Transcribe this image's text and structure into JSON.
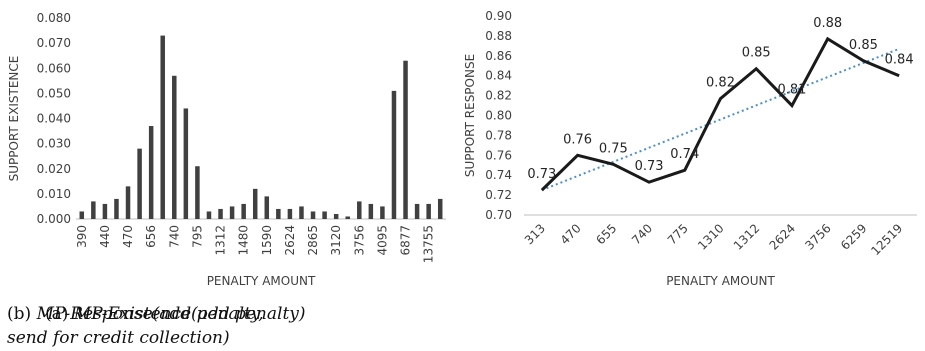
{
  "chart_data": [
    {
      "type": "bar",
      "ylabel": "SUPPORT EXISTENCE",
      "xlabel": "PENALTY AMOUNT",
      "ylim": [
        0,
        0.08
      ],
      "yticks": [
        "0.000",
        "0.010",
        "0.020",
        "0.030",
        "0.040",
        "0.050",
        "0.060",
        "0.070",
        "0.080"
      ],
      "categories": [
        "390",
        "",
        "440",
        "",
        "470",
        "",
        "656",
        "",
        "740",
        "",
        "795",
        "",
        "1312",
        "",
        "1480",
        "",
        "1590",
        "",
        "2624",
        "",
        "2865",
        "",
        "3120",
        "",
        "3756",
        "",
        "4095",
        "",
        "6877",
        "",
        "13755",
        ""
      ],
      "values": [
        0.003,
        0.007,
        0.006,
        0.008,
        0.013,
        0.028,
        0.037,
        0.073,
        0.057,
        0.044,
        0.021,
        0.003,
        0.004,
        0.005,
        0.006,
        0.012,
        0.009,
        0.004,
        0.004,
        0.005,
        0.003,
        0.003,
        0.002,
        0.001,
        0.007,
        0.006,
        0.005,
        0.051,
        0.063,
        0.006,
        0.006,
        0.008
      ],
      "grid": false,
      "color": "#404040"
    },
    {
      "type": "line",
      "ylabel": "SUPPORT RESPONSE",
      "xlabel": "PENALTY AMOUNT",
      "ylim": [
        0.7,
        0.9
      ],
      "yticks": [
        "0.70",
        "0.72",
        "0.74",
        "0.76",
        "0.78",
        "0.80",
        "0.82",
        "0.84",
        "0.86",
        "0.88",
        "0.90"
      ],
      "categories": [
        "313",
        "470",
        "655",
        "740",
        "775",
        "1310",
        "1312",
        "2624",
        "3756",
        "6259",
        "12519"
      ],
      "values": [
        0.725,
        0.76,
        0.751,
        0.733,
        0.745,
        0.817,
        0.847,
        0.81,
        0.877,
        0.855,
        0.84
      ],
      "data_labels": [
        "0.73",
        "0.76",
        "0.75",
        "0.73",
        "0.74",
        "0.82",
        "0.85",
        "0.81",
        "0.88",
        "0.85",
        "0.84"
      ],
      "trendline": {
        "style": "dotted",
        "color": "#4a90c8",
        "from": 0.725,
        "to": 0.867
      },
      "grid": false,
      "color": "#1a1a1a"
    }
  ],
  "captions": {
    "a_label": "(a) ",
    "a_text": "MP-Existence(add penalty)",
    "b_label": "(b) ",
    "b_text_line1": "MP-Response(add penalty,",
    "b_text_line2": "send for credit collection)"
  }
}
